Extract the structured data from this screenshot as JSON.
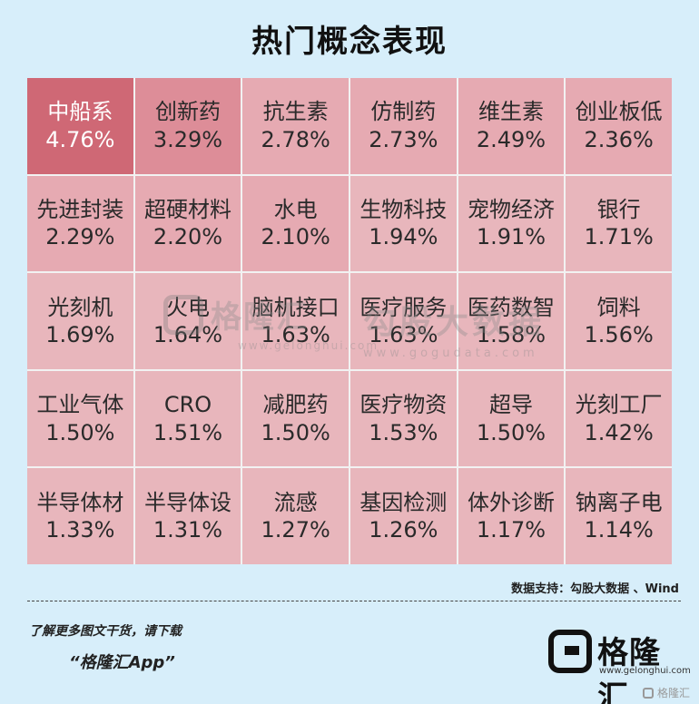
{
  "title": "热门概念表现",
  "cells": [
    {
      "name": "中船系",
      "pct": "4.76%",
      "color": "#cf6875",
      "hot": true
    },
    {
      "name": "创新药",
      "pct": "3.29%",
      "color": "#dd8d98"
    },
    {
      "name": "抗生素",
      "pct": "2.78%",
      "color": "#e6aab2"
    },
    {
      "name": "仿制药",
      "pct": "2.73%",
      "color": "#e6aab2"
    },
    {
      "name": "维生素",
      "pct": "2.49%",
      "color": "#e6aab2"
    },
    {
      "name": "创业板低",
      "pct": "2.36%",
      "color": "#e6aab2"
    },
    {
      "name": "先进封装",
      "pct": "2.29%",
      "color": "#e6aab2"
    },
    {
      "name": "超硬材料",
      "pct": "2.20%",
      "color": "#e6aab2"
    },
    {
      "name": "水电",
      "pct": "2.10%",
      "color": "#e6aab2"
    },
    {
      "name": "生物科技",
      "pct": "1.94%",
      "color": "#e8b6bc"
    },
    {
      "name": "宠物经济",
      "pct": "1.91%",
      "color": "#e8b6bc"
    },
    {
      "name": "银行",
      "pct": "1.71%",
      "color": "#e8b6bc"
    },
    {
      "name": "光刻机",
      "pct": "1.69%",
      "color": "#e8b6bc"
    },
    {
      "name": "火电",
      "pct": "1.64%",
      "color": "#e8b6bc"
    },
    {
      "name": "脑机接口",
      "pct": "1.63%",
      "color": "#e8b6bc"
    },
    {
      "name": "医疗服务",
      "pct": "1.63%",
      "color": "#e8b6bc"
    },
    {
      "name": "医药数智",
      "pct": "1.58%",
      "color": "#e8b6bc"
    },
    {
      "name": "饲料",
      "pct": "1.56%",
      "color": "#e8b6bc"
    },
    {
      "name": "工业气体",
      "pct": "1.50%",
      "color": "#e8b6bc"
    },
    {
      "name": "CRO",
      "pct": "1.51%",
      "color": "#e8b6bc"
    },
    {
      "name": "减肥药",
      "pct": "1.50%",
      "color": "#e8b6bc"
    },
    {
      "name": "医疗物资",
      "pct": "1.53%",
      "color": "#e8b6bc"
    },
    {
      "name": "超导",
      "pct": "1.50%",
      "color": "#e8b6bc"
    },
    {
      "name": "光刻工厂",
      "pct": "1.42%",
      "color": "#e8b6bc"
    },
    {
      "name": "半导体材",
      "pct": "1.33%",
      "color": "#e8b6bc"
    },
    {
      "name": "半导体设",
      "pct": "1.31%",
      "color": "#e8b6bc"
    },
    {
      "name": "流感",
      "pct": "1.27%",
      "color": "#e8b6bc"
    },
    {
      "name": "基因检测",
      "pct": "1.26%",
      "color": "#e8b6bc"
    },
    {
      "name": "体外诊断",
      "pct": "1.17%",
      "color": "#e8b6bc"
    },
    {
      "name": "钠离子电",
      "pct": "1.14%",
      "color": "#e8b6bc"
    }
  ],
  "watermarks": {
    "left_brand": "格隆汇",
    "left_url": "www.gelonghui.com",
    "right_brand": "勾股大数据",
    "right_url": "www.gogudata.com"
  },
  "source": "数据支持：勾股大数据 、Wind",
  "footer": {
    "line1": "了解更多图文干货，请下载",
    "line2": "“格隆汇App”"
  },
  "logo": {
    "name": "格隆汇",
    "url": "www.gelonghui.com",
    "corner_text": "格隆汇"
  }
}
